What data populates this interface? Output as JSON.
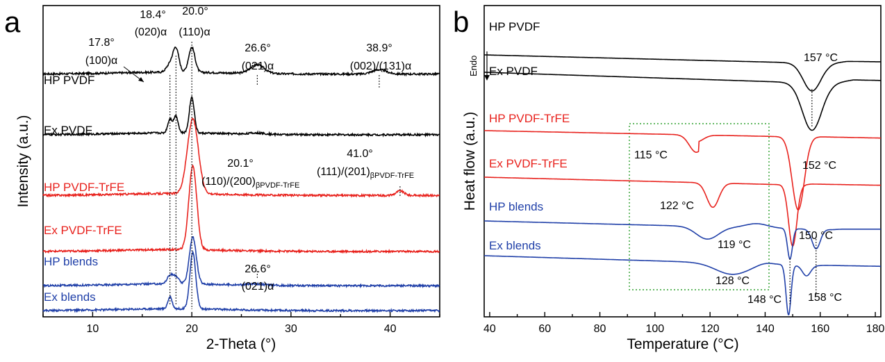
{
  "colors": {
    "black": "#000000",
    "red": "#e8211c",
    "blue": "#1f3fa8",
    "box": "#2ea02e"
  },
  "chart_data": [
    {
      "panel": "a",
      "type": "line",
      "xlabel": "2-Theta (°)",
      "ylabel": "Intensity (a.u.)",
      "xlim": [
        5,
        45
      ],
      "xticks": [
        10,
        20,
        30,
        40
      ],
      "series": [
        {
          "name": "HP PVDF",
          "color": "#000000",
          "baseline": 0.78,
          "peaks": [
            [
              17.8,
              0.025,
              0.35
            ],
            [
              18.4,
              0.075,
              0.3
            ],
            [
              20.0,
              0.08,
              0.32
            ],
            [
              26.6,
              0.028,
              0.7
            ],
            [
              38.9,
              0.014,
              0.7
            ]
          ]
        },
        {
          "name": "Ex PVDF",
          "color": "#000000",
          "baseline": 0.585,
          "peaks": [
            [
              17.8,
              0.045,
              0.22
            ],
            [
              18.4,
              0.055,
              0.22
            ],
            [
              20.0,
              0.115,
              0.25
            ],
            [
              26.6,
              0.004,
              0.8
            ]
          ]
        },
        {
          "name": "HP PVDF-TrFE",
          "color": "#e8211c",
          "baseline": 0.39,
          "peaks": [
            [
              20.1,
              0.24,
              0.55
            ],
            [
              41.0,
              0.015,
              0.4
            ]
          ]
        },
        {
          "name": "Ex PVDF-TrFE",
          "color": "#e8211c",
          "baseline": 0.21,
          "peaks": [
            [
              20.1,
              0.27,
              0.4
            ]
          ]
        },
        {
          "name": "HP blends",
          "color": "#1f3fa8",
          "baseline": 0.1,
          "peaks": [
            [
              17.8,
              0.026,
              0.3
            ],
            [
              18.4,
              0.022,
              0.3
            ],
            [
              20.1,
              0.15,
              0.35
            ],
            [
              26.6,
              0.004,
              0.8
            ]
          ]
        },
        {
          "name": "Ex blends",
          "color": "#1f3fa8",
          "baseline": 0.02,
          "peaks": [
            [
              17.8,
              0.038,
              0.22
            ],
            [
              20.1,
              0.18,
              0.3
            ]
          ]
        }
      ],
      "annotations": [
        {
          "text": "17.8°",
          "line2": "(100)α"
        },
        {
          "text": "18.4°",
          "line2": "(020)α"
        },
        {
          "text": "20.0°",
          "line2": "(110)α"
        },
        {
          "text": "26.6°",
          "line2": "(021)α"
        },
        {
          "text": "38.9°",
          "line2": "(002)/(131)α"
        },
        {
          "text": "20.1°",
          "line2": "(110)/(200)",
          "sub": "βPVDF-TrFE"
        },
        {
          "text": "41.0°",
          "line2": "(111)/(201)",
          "sub": "βPVDF-TrFE"
        },
        {
          "text": "26.6°",
          "line2": "(021)α"
        }
      ]
    },
    {
      "panel": "b",
      "type": "line",
      "xlabel": "Temperature (°C)",
      "ylabel": "Heat flow (a.u.)",
      "endo_label": "Endo",
      "xlim": [
        38,
        182
      ],
      "xticks": [
        40,
        60,
        80,
        100,
        120,
        140,
        160,
        180
      ],
      "series": [
        {
          "name": "HP PVDF",
          "color": "#000000"
        },
        {
          "name": "Ex PVDF",
          "color": "#000000"
        },
        {
          "name": "HP PVDF-TrFE",
          "color": "#e8211c"
        },
        {
          "name": "Ex PVDF-TrFE",
          "color": "#e8211c"
        },
        {
          "name": "HP blends",
          "color": "#1f3fa8"
        },
        {
          "name": "Ex blends",
          "color": "#1f3fa8"
        }
      ],
      "annotations": [
        "157 °C",
        "115 °C",
        "152 °C",
        "122 °C",
        "150 °C",
        "119 °C",
        "128 °C",
        "148 °C",
        "158 °C"
      ]
    }
  ]
}
